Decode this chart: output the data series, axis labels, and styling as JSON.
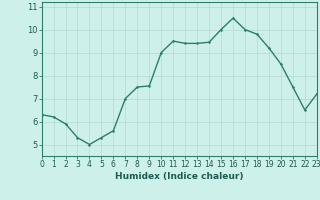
{
  "x": [
    0,
    1,
    2,
    3,
    4,
    5,
    6,
    7,
    8,
    9,
    10,
    11,
    12,
    13,
    14,
    15,
    16,
    17,
    18,
    19,
    20,
    21,
    22,
    23
  ],
  "y": [
    6.3,
    6.2,
    5.9,
    5.3,
    5.0,
    5.3,
    5.6,
    7.0,
    7.5,
    7.55,
    9.0,
    9.5,
    9.4,
    9.4,
    9.45,
    10.0,
    10.5,
    10.0,
    9.8,
    9.2,
    8.5,
    7.5,
    6.5,
    7.2
  ],
  "xlabel": "Humidex (Indice chaleur)",
  "xlim": [
    0,
    23
  ],
  "ylim": [
    4.5,
    11.2
  ],
  "yticks": [
    5,
    6,
    7,
    8,
    9,
    10,
    11
  ],
  "xticks": [
    0,
    1,
    2,
    3,
    4,
    5,
    6,
    7,
    8,
    9,
    10,
    11,
    12,
    13,
    14,
    15,
    16,
    17,
    18,
    19,
    20,
    21,
    22,
    23
  ],
  "line_color": "#2e7d6e",
  "bg_color": "#cef0ea",
  "grid_color": "#b8ddd7",
  "label_color": "#1a5c52",
  "tick_color": "#1a5c52",
  "grid_major_lw": 0.6,
  "line_lw": 1.0,
  "marker_size": 2.5,
  "tick_fontsize": 5.5,
  "xlabel_fontsize": 6.5
}
